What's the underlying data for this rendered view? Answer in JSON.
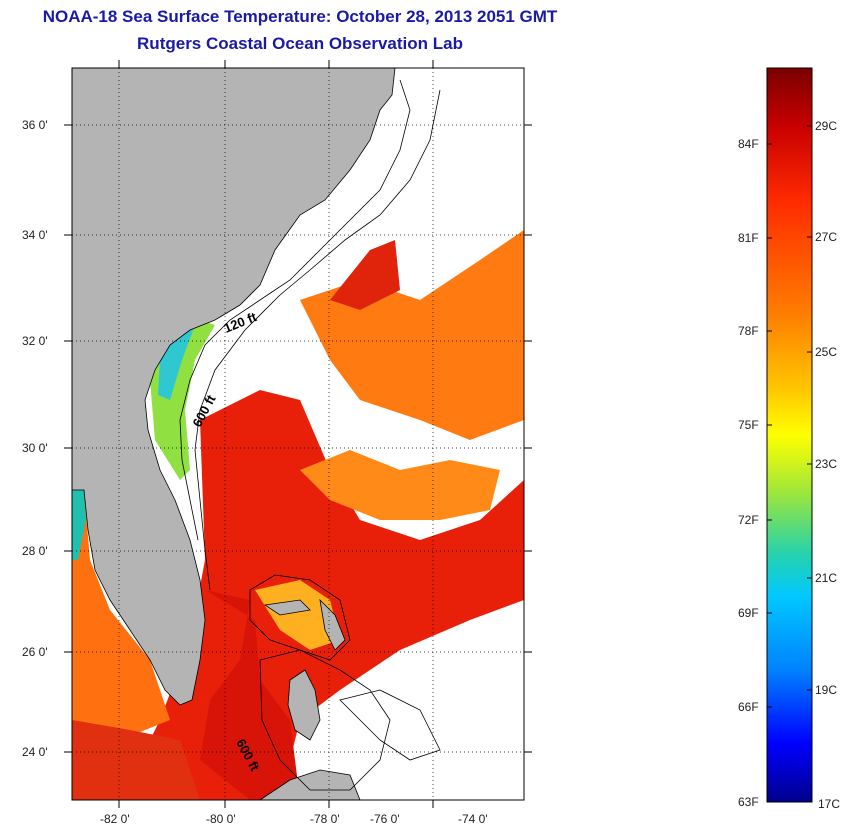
{
  "title_line1": "NOAA-18 Sea Surface Temperature:  October 28, 2013 2051 GMT",
  "title_line2": "Rutgers Coastal Ocean Observation Lab",
  "map": {
    "lon_ticks": [
      "-82 0'",
      "-80 0'",
      "-78 0'",
      "-76 0'",
      "-74 0'"
    ],
    "lat_ticks": [
      "36 0'",
      "34 0'",
      "32 0'",
      "30 0'",
      "28 0'",
      "26 0'",
      "24 0'"
    ],
    "contour_labels": [
      "120 ft",
      "600 ft",
      "600 ft"
    ],
    "colors": {
      "land": "#b4b4b4",
      "cloud": "#ffffff",
      "frame": "#000000"
    }
  },
  "colorbar": {
    "fahrenheit": [
      "84F",
      "81F",
      "78F",
      "75F",
      "72F",
      "69F",
      "66F",
      "63F"
    ],
    "celsius": [
      "29C",
      "27C",
      "25C",
      "23C",
      "21C",
      "19C",
      "17C"
    ],
    "gradient": [
      "#7a0000",
      "#c80000",
      "#ff2a00",
      "#ff7a00",
      "#ffc800",
      "#ffff00",
      "#9be63c",
      "#28d2aa",
      "#00c8ff",
      "#0082ff",
      "#0000ff",
      "#00008c"
    ]
  }
}
